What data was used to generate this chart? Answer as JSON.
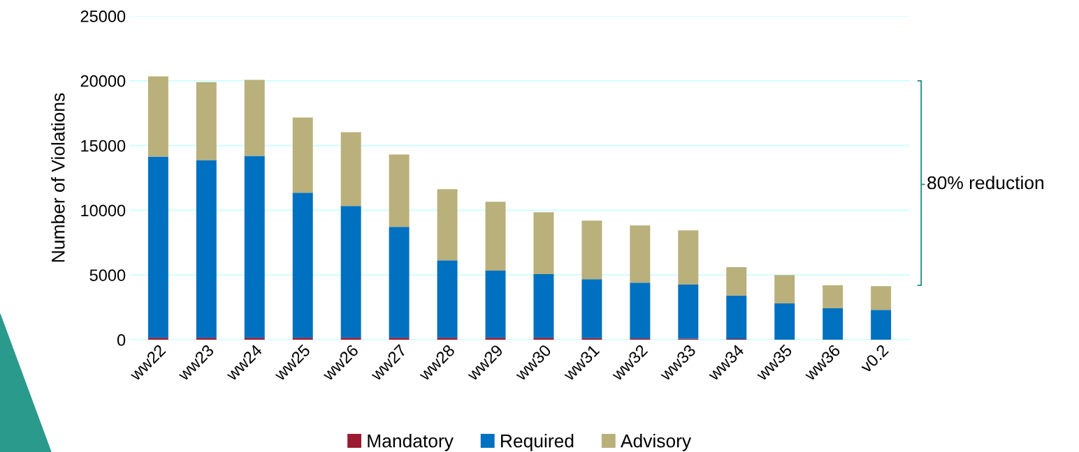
{
  "chart_data": {
    "type": "bar",
    "stacked": true,
    "ylabel": "Number of Violations",
    "categories": [
      "ww22",
      "ww23",
      "ww24",
      "ww25",
      "ww26",
      "ww27",
      "ww28",
      "ww29",
      "ww30",
      "ww31",
      "ww32",
      "ww33",
      "ww34",
      "ww35",
      "ww36",
      "v0.2"
    ],
    "series": [
      {
        "name": "Mandatory",
        "color": "#9b1b30",
        "values": [
          150,
          150,
          150,
          150,
          150,
          150,
          150,
          150,
          150,
          120,
          100,
          80,
          60,
          0,
          0,
          0
        ]
      },
      {
        "name": "Required",
        "color": "#0070c0",
        "values": [
          14000,
          13730,
          14050,
          11200,
          10180,
          8570,
          5980,
          5180,
          4910,
          4560,
          4310,
          4170,
          3330,
          2800,
          2420,
          2310
        ]
      },
      {
        "name": "Advisory",
        "color": "#b9b07b",
        "values": [
          6190,
          6020,
          5870,
          5810,
          5700,
          5590,
          5490,
          5320,
          4790,
          4520,
          4410,
          4200,
          2210,
          2200,
          1780,
          1830
        ]
      }
    ],
    "ylim": [
      0,
      25000
    ],
    "yticks": [
      0,
      5000,
      10000,
      15000,
      20000,
      25000
    ],
    "grid": "y",
    "legend": "bottom",
    "annotations": [
      "80% reduction"
    ]
  }
}
